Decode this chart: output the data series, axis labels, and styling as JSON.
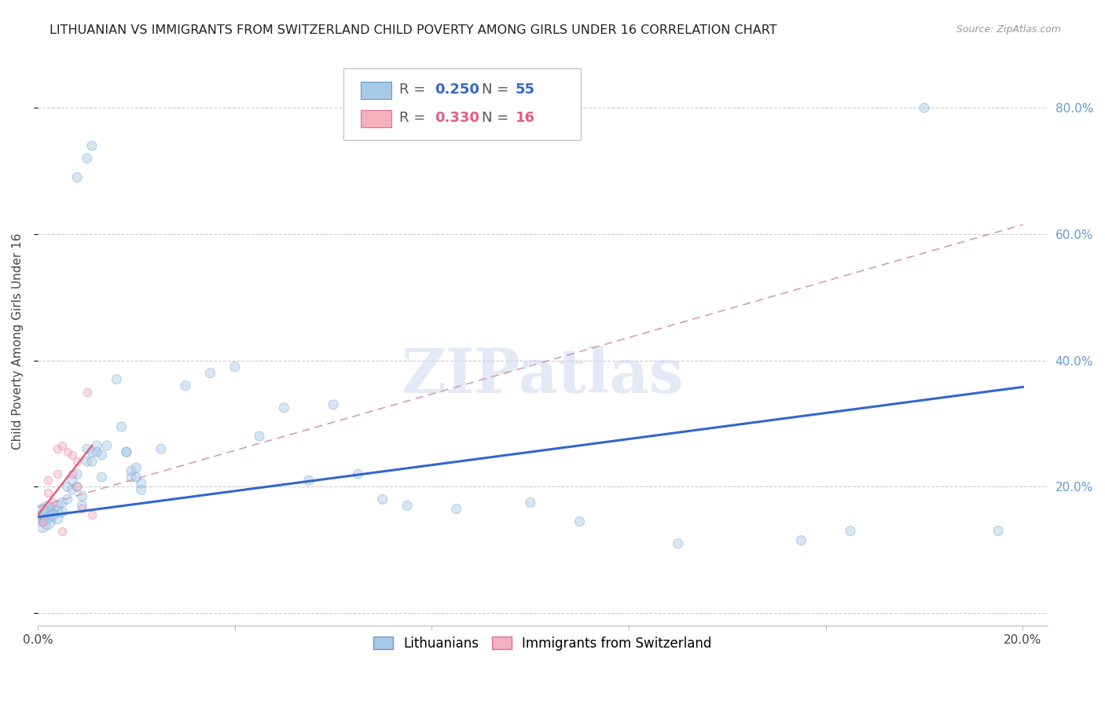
{
  "title": "LITHUANIAN VS IMMIGRANTS FROM SWITZERLAND CHILD POVERTY AMONG GIRLS UNDER 16 CORRELATION CHART",
  "source": "Source: ZipAtlas.com",
  "ylabel": "Child Poverty Among Girls Under 16",
  "xlim": [
    0.0,
    0.205
  ],
  "ylim": [
    -0.02,
    0.88
  ],
  "xticks": [
    0.0,
    0.04,
    0.08,
    0.12,
    0.16,
    0.2
  ],
  "yticks": [
    0.0,
    0.2,
    0.4,
    0.6,
    0.8
  ],
  "ytick_labels_right": [
    "",
    "20.0%",
    "40.0%",
    "60.0%",
    "80.0%"
  ],
  "xtick_labels": [
    "0.0%",
    "",
    "",
    "",
    "",
    "20.0%"
  ],
  "blue_scatter": [
    [
      0.001,
      0.16
    ],
    [
      0.001,
      0.15
    ],
    [
      0.001,
      0.14
    ],
    [
      0.002,
      0.165
    ],
    [
      0.002,
      0.155
    ],
    [
      0.002,
      0.145
    ],
    [
      0.003,
      0.165
    ],
    [
      0.003,
      0.155
    ],
    [
      0.004,
      0.17
    ],
    [
      0.004,
      0.16
    ],
    [
      0.004,
      0.15
    ],
    [
      0.005,
      0.175
    ],
    [
      0.005,
      0.16
    ],
    [
      0.006,
      0.18
    ],
    [
      0.006,
      0.2
    ],
    [
      0.007,
      0.21
    ],
    [
      0.007,
      0.195
    ],
    [
      0.008,
      0.22
    ],
    [
      0.008,
      0.2
    ],
    [
      0.009,
      0.185
    ],
    [
      0.009,
      0.17
    ],
    [
      0.01,
      0.26
    ],
    [
      0.01,
      0.24
    ],
    [
      0.011,
      0.255
    ],
    [
      0.011,
      0.24
    ],
    [
      0.012,
      0.265
    ],
    [
      0.012,
      0.255
    ],
    [
      0.013,
      0.25
    ],
    [
      0.013,
      0.215
    ],
    [
      0.014,
      0.265
    ],
    [
      0.016,
      0.37
    ],
    [
      0.017,
      0.295
    ],
    [
      0.018,
      0.255
    ],
    [
      0.018,
      0.255
    ],
    [
      0.019,
      0.225
    ],
    [
      0.019,
      0.215
    ],
    [
      0.02,
      0.23
    ],
    [
      0.02,
      0.215
    ],
    [
      0.021,
      0.205
    ],
    [
      0.021,
      0.195
    ],
    [
      0.025,
      0.26
    ],
    [
      0.03,
      0.36
    ],
    [
      0.035,
      0.38
    ],
    [
      0.04,
      0.39
    ],
    [
      0.045,
      0.28
    ],
    [
      0.05,
      0.325
    ],
    [
      0.055,
      0.21
    ],
    [
      0.06,
      0.33
    ],
    [
      0.065,
      0.22
    ],
    [
      0.07,
      0.18
    ],
    [
      0.075,
      0.17
    ],
    [
      0.085,
      0.165
    ],
    [
      0.1,
      0.175
    ],
    [
      0.11,
      0.145
    ],
    [
      0.13,
      0.11
    ],
    [
      0.155,
      0.115
    ],
    [
      0.165,
      0.13
    ],
    [
      0.008,
      0.69
    ],
    [
      0.01,
      0.72
    ],
    [
      0.011,
      0.74
    ],
    [
      0.18,
      0.8
    ],
    [
      0.195,
      0.13
    ]
  ],
  "pink_scatter": [
    [
      0.001,
      0.145
    ],
    [
      0.002,
      0.19
    ],
    [
      0.002,
      0.21
    ],
    [
      0.003,
      0.175
    ],
    [
      0.004,
      0.22
    ],
    [
      0.004,
      0.26
    ],
    [
      0.005,
      0.265
    ],
    [
      0.006,
      0.255
    ],
    [
      0.007,
      0.25
    ],
    [
      0.007,
      0.22
    ],
    [
      0.008,
      0.24
    ],
    [
      0.008,
      0.2
    ],
    [
      0.009,
      0.165
    ],
    [
      0.01,
      0.35
    ],
    [
      0.011,
      0.155
    ],
    [
      0.005,
      0.13
    ]
  ],
  "blue_line": {
    "x0": 0.0,
    "y0": 0.152,
    "x1": 0.2,
    "y1": 0.358
  },
  "pink_solid_line": {
    "x0": 0.0,
    "y0": 0.155,
    "x1": 0.011,
    "y1": 0.265
  },
  "pink_dash_line": {
    "x0": 0.0,
    "y0": 0.168,
    "x1": 0.2,
    "y1": 0.615
  },
  "watermark_text": "ZIPatlas",
  "scatter_size_blue": 75,
  "scatter_size_pink": 55,
  "scatter_alpha": 0.45,
  "grid_color": "#cccccc",
  "bg_color": "#ffffff",
  "blue_color": "#a8c8e8",
  "blue_edge": "#6699cc",
  "pink_color": "#f5b0c0",
  "pink_edge": "#e07090",
  "blue_line_color": "#3366cc",
  "pink_solid_color": "#e06080",
  "pink_dash_color": "#d0a0b0",
  "right_tick_color": "#6699cc",
  "title_fontsize": 11.5,
  "source_fontsize": 9,
  "axis_fontsize": 11
}
